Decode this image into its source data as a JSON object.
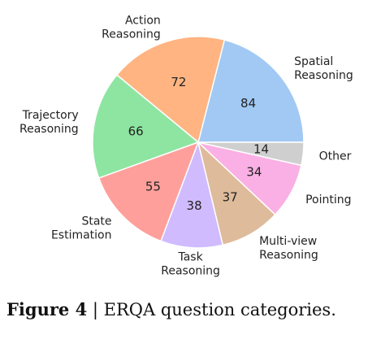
{
  "chart_data": {
    "type": "pie",
    "labels": [
      [
        "Spatial",
        "Reasoning"
      ],
      [
        "Action",
        "Reasoning"
      ],
      [
        "Trajectory",
        "Reasoning"
      ],
      [
        "State",
        "Estimation"
      ],
      [
        "Task",
        "Reasoning"
      ],
      [
        "Multi-view",
        "Reasoning"
      ],
      [
        "Pointing"
      ],
      [
        "Other"
      ]
    ],
    "values": [
      84,
      72,
      66,
      55,
      38,
      37,
      34,
      14
    ],
    "colors": [
      "#a1c9f4",
      "#ffb482",
      "#8de5a1",
      "#ff9f9b",
      "#d0bbff",
      "#debb9b",
      "#fab0e4",
      "#cfcfcf"
    ],
    "start_angle_deg": 0,
    "direction": "counterclockwise",
    "value_labels_shown": true
  },
  "caption": {
    "label": "Figure 4",
    "separator": "|",
    "text": "ERQA question categories."
  }
}
